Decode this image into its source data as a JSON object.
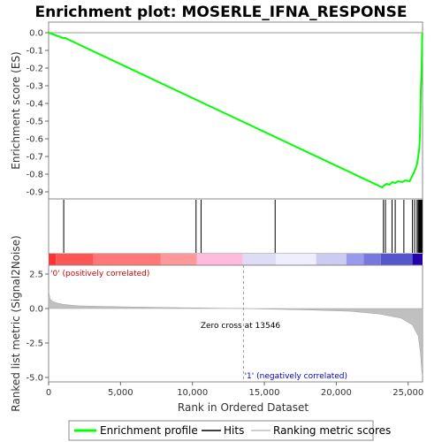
{
  "chart_data": {
    "type": "line",
    "title": "Enrichment plot: MOSERLE_IFNA_RESPONSE",
    "es_panel": {
      "ylabel": "Enrichment score (ES)",
      "ylim": [
        -0.9,
        0.0
      ],
      "yticks": [
        "0.0",
        "-0.1",
        "-0.2",
        "-0.3",
        "-0.4",
        "-0.5",
        "-0.6",
        "-0.7",
        "-0.8",
        "-0.9"
      ],
      "series": [
        {
          "name": "Enrichment profile",
          "color": "#00ff00",
          "x": [
            0,
            1000,
            1150,
            23200,
            23300,
            23500,
            23700,
            23900,
            24100,
            24300,
            24600,
            24800,
            25100,
            25350,
            25500,
            25600,
            25700,
            25780,
            25820,
            25850,
            25880,
            25920,
            25950,
            25980
          ],
          "y": [
            0.0,
            -0.03,
            -0.03,
            -0.875,
            -0.865,
            -0.855,
            -0.86,
            -0.845,
            -0.85,
            -0.84,
            -0.845,
            -0.835,
            -0.84,
            -0.8,
            -0.77,
            -0.75,
            -0.7,
            -0.65,
            -0.57,
            -0.45,
            -0.33,
            -0.24,
            -0.14,
            0.0
          ]
        }
      ]
    },
    "hits": [
      1050,
      10250,
      10600,
      15750,
      23280,
      23420,
      23880,
      24100,
      24700,
      25300,
      25450,
      25620,
      25700,
      25760,
      25800,
      25840,
      25880,
      25920,
      25960
    ],
    "metric_panel": {
      "ylabel": "Ranked list metric (Signal2Noise)",
      "ylim": [
        -5.0,
        2.5
      ],
      "yticks": [
        "2.5",
        "0.0",
        "-2.5",
        "-5.0"
      ],
      "x": [
        0,
        100,
        300,
        600,
        1000,
        2000,
        4000,
        8000,
        13546,
        18000,
        21000,
        23000,
        24500,
        25300,
        25700,
        25850,
        25950,
        26000
      ],
      "y": [
        1.3,
        0.7,
        0.5,
        0.4,
        0.3,
        0.2,
        0.15,
        0.08,
        0.0,
        -0.1,
        -0.2,
        -0.4,
        -0.7,
        -1.2,
        -2.0,
        -3.2,
        -4.6,
        -4.9
      ],
      "positive_label": "'0' (positively correlated)",
      "negative_label": "'1' (negatively correlated)",
      "zero_cross_label": "Zero cross at 13546",
      "zero_cross": 13546
    },
    "xlabel": "Rank in Ordered Dataset",
    "xlim": [
      0,
      26000
    ],
    "xticks": [
      "0",
      "5,000",
      "10,000",
      "15,000",
      "20,000",
      "25,000"
    ],
    "xtick_values": [
      0,
      5000,
      10000,
      15000,
      20000,
      25000
    ],
    "heat_bar": [
      {
        "from": 0,
        "to": 500,
        "color": "#ff3333"
      },
      {
        "from": 500,
        "to": 3100,
        "color": "#ff5555"
      },
      {
        "from": 3100,
        "to": 7800,
        "color": "#ff7777"
      },
      {
        "from": 7800,
        "to": 10300,
        "color": "#ff9999"
      },
      {
        "from": 10300,
        "to": 13500,
        "color": "#ffbbdd"
      },
      {
        "from": 13500,
        "to": 15800,
        "color": "#ddddf5"
      },
      {
        "from": 15800,
        "to": 18600,
        "color": "#eeeeff"
      },
      {
        "from": 18600,
        "to": 20700,
        "color": "#ccccf2"
      },
      {
        "from": 20700,
        "to": 21900,
        "color": "#9999ee"
      },
      {
        "from": 21900,
        "to": 23100,
        "color": "#7777dd"
      },
      {
        "from": 23100,
        "to": 25300,
        "color": "#5555cc"
      },
      {
        "from": 25300,
        "to": 26000,
        "color": "#2200aa"
      }
    ],
    "legend": {
      "placement": "bottom",
      "items": [
        "Enrichment profile",
        "Hits",
        "Ranking metric scores"
      ]
    }
  }
}
